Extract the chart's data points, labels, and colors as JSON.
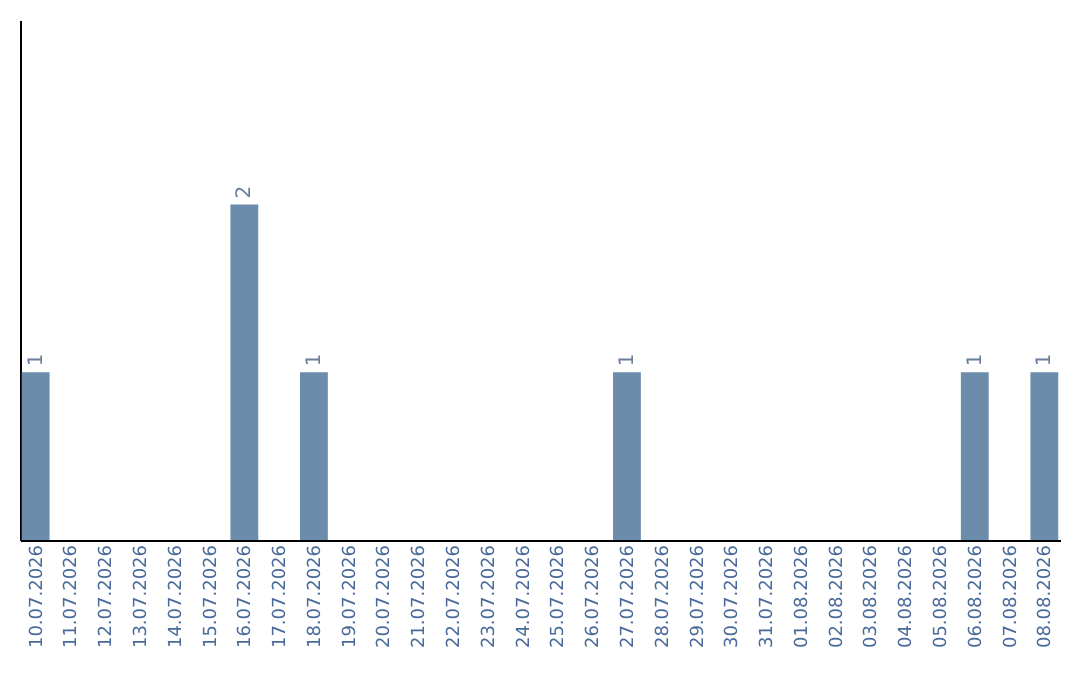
{
  "chart_data": {
    "type": "bar",
    "categories": [
      "10.07.2026",
      "11.07.2026",
      "12.07.2026",
      "13.07.2026",
      "14.07.2026",
      "15.07.2026",
      "16.07.2026",
      "17.07.2026",
      "18.07.2026",
      "19.07.2026",
      "20.07.2026",
      "21.07.2026",
      "22.07.2026",
      "23.07.2026",
      "24.07.2026",
      "25.07.2026",
      "26.07.2026",
      "27.07.2026",
      "28.07.2026",
      "29.07.2026",
      "30.07.2026",
      "31.07.2026",
      "01.08.2026",
      "02.08.2026",
      "03.08.2026",
      "04.08.2026",
      "05.08.2026",
      "06.08.2026",
      "07.08.2026",
      "08.08.2026"
    ],
    "values": [
      1,
      0,
      0,
      0,
      0,
      0,
      2,
      0,
      1,
      0,
      0,
      0,
      0,
      0,
      0,
      0,
      0,
      1,
      0,
      0,
      0,
      0,
      0,
      0,
      0,
      0,
      0,
      1,
      0,
      1
    ],
    "value_labels": [
      "1",
      null,
      null,
      null,
      null,
      null,
      "2",
      null,
      "1",
      null,
      null,
      null,
      null,
      null,
      null,
      null,
      null,
      "1",
      null,
      null,
      null,
      null,
      null,
      null,
      null,
      null,
      null,
      "1",
      null,
      "1"
    ],
    "color": "#6b8caa",
    "ylim": [
      0,
      3.1
    ],
    "grid": false,
    "tick_labels": "x"
  }
}
